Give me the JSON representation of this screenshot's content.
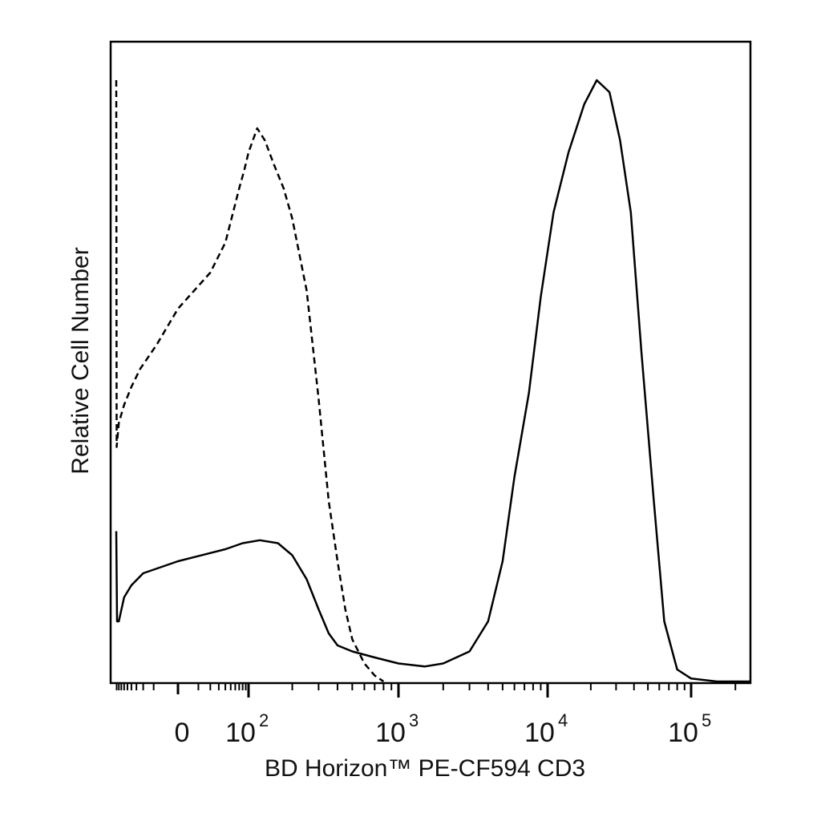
{
  "chart_data": {
    "type": "line",
    "title": "",
    "xlabel": "BD Horizon™ PE-CF594 CD3",
    "ylabel": "Relative Cell Number",
    "x_scale": "biexponential",
    "xlim": [
      -250,
      250000
    ],
    "ylim": [
      0,
      100
    ],
    "grid": false,
    "legend": "none",
    "x_tick_labels": [
      {
        "value": 0,
        "base": "0",
        "exp": ""
      },
      {
        "value": 100,
        "base": "10",
        "exp": "2"
      },
      {
        "value": 1000,
        "base": "10",
        "exp": "3"
      },
      {
        "value": 10000,
        "base": "10",
        "exp": "4"
      },
      {
        "value": 100000,
        "base": "10",
        "exp": "5"
      }
    ],
    "series": [
      {
        "line_style": "dashed",
        "color": "#000000",
        "points": [
          [
            -230,
            100
          ],
          [
            -225,
            39
          ],
          [
            -200,
            43
          ],
          [
            -150,
            46
          ],
          [
            -100,
            49
          ],
          [
            -60,
            52
          ],
          [
            -20,
            56
          ],
          [
            0,
            62
          ],
          [
            20,
            68
          ],
          [
            40,
            73
          ],
          [
            55,
            78
          ],
          [
            70,
            82
          ],
          [
            85,
            85
          ],
          [
            100,
            88
          ],
          [
            115,
            92
          ],
          [
            130,
            90
          ],
          [
            150,
            86
          ],
          [
            175,
            82
          ],
          [
            200,
            77
          ],
          [
            250,
            65
          ],
          [
            300,
            47
          ],
          [
            350,
            30
          ],
          [
            400,
            20
          ],
          [
            450,
            12
          ],
          [
            500,
            7
          ],
          [
            600,
            3
          ],
          [
            700,
            1
          ],
          [
            800,
            0
          ]
        ]
      },
      {
        "line_style": "solid",
        "color": "#000000",
        "points": [
          [
            -230,
            25
          ],
          [
            -220,
            10
          ],
          [
            -200,
            10
          ],
          [
            -150,
            14
          ],
          [
            -100,
            16
          ],
          [
            -50,
            18
          ],
          [
            0,
            20
          ],
          [
            40,
            22
          ],
          [
            80,
            23
          ],
          [
            120,
            23.5
          ],
          [
            160,
            23
          ],
          [
            200,
            21
          ],
          [
            250,
            17
          ],
          [
            300,
            12
          ],
          [
            350,
            8
          ],
          [
            400,
            6
          ],
          [
            500,
            5
          ],
          [
            700,
            4
          ],
          [
            1000,
            3
          ],
          [
            1500,
            2.5
          ],
          [
            2000,
            3
          ],
          [
            3000,
            5
          ],
          [
            4000,
            10
          ],
          [
            5000,
            20
          ],
          [
            6000,
            34
          ],
          [
            7500,
            48
          ],
          [
            9000,
            64
          ],
          [
            11000,
            78
          ],
          [
            14000,
            88
          ],
          [
            18000,
            96
          ],
          [
            22000,
            100
          ],
          [
            27000,
            98
          ],
          [
            32000,
            90
          ],
          [
            38000,
            78
          ],
          [
            45000,
            55
          ],
          [
            55000,
            30
          ],
          [
            65000,
            10
          ],
          [
            80000,
            2
          ],
          [
            100000,
            0.5
          ],
          [
            150000,
            0
          ],
          [
            250000,
            0
          ]
        ]
      }
    ]
  }
}
